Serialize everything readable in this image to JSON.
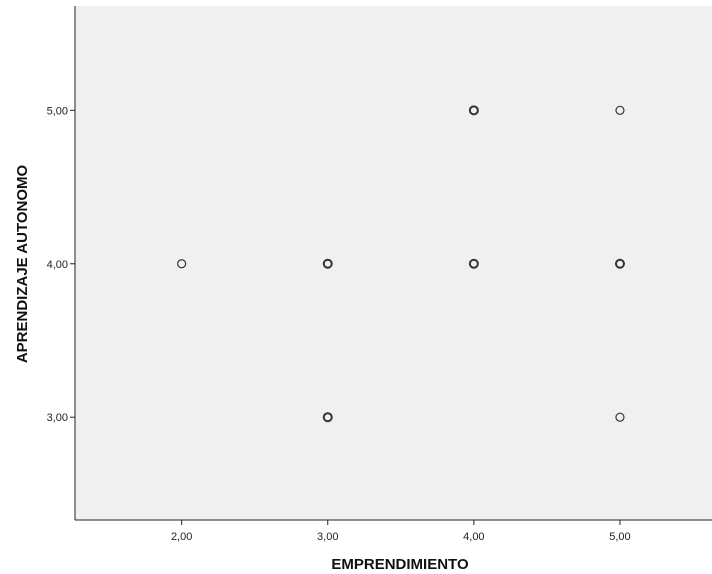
{
  "chart_data": {
    "type": "scatter",
    "xlabel": "EMPRENDIMIENTO",
    "ylabel": "APRENDIZAJE  AUTONOMO",
    "xlim": [
      1.27,
      5.63
    ],
    "ylim": [
      2.33,
      5.68
    ],
    "x_ticks": [
      {
        "value": 2,
        "label": "2,00"
      },
      {
        "value": 3,
        "label": "3,00"
      },
      {
        "value": 4,
        "label": "4,00"
      },
      {
        "value": 5,
        "label": "5,00"
      }
    ],
    "y_ticks": [
      {
        "value": 3,
        "label": "3,00"
      },
      {
        "value": 4,
        "label": "4,00"
      },
      {
        "value": 5,
        "label": "5,00"
      }
    ],
    "points": [
      {
        "x": 2,
        "y": 4,
        "overlap": false
      },
      {
        "x": 3,
        "y": 4,
        "overlap": true
      },
      {
        "x": 3,
        "y": 3,
        "overlap": true
      },
      {
        "x": 4,
        "y": 5,
        "overlap": true
      },
      {
        "x": 4,
        "y": 4,
        "overlap": true
      },
      {
        "x": 5,
        "y": 5,
        "overlap": false
      },
      {
        "x": 5,
        "y": 4,
        "overlap": true
      },
      {
        "x": 5,
        "y": 3,
        "overlap": false
      }
    ],
    "grid": false,
    "legend": "none",
    "colors": {
      "plot_background": "#f0f0f0",
      "marker_stroke": "#333333",
      "axis": "#222222"
    }
  }
}
